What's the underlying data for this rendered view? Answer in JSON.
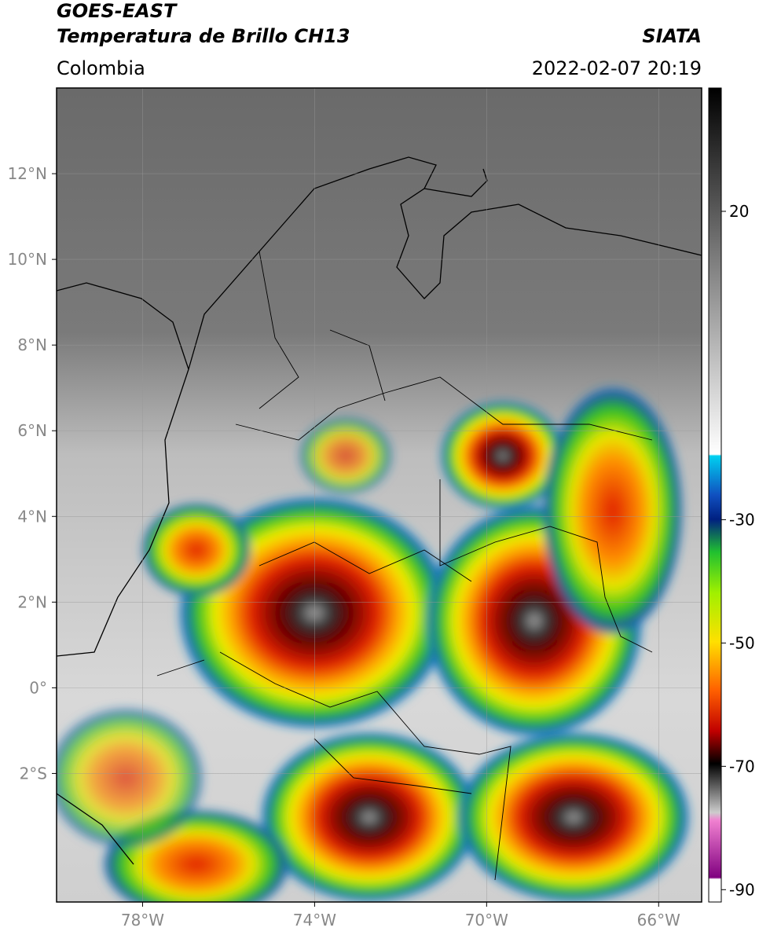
{
  "header": {
    "title": "GOES-EAST",
    "subtitle": "Temperatura de Brillo CH13",
    "source": "SIATA",
    "region": "Colombia",
    "datetime": "2022-02-07 20:19"
  },
  "map": {
    "xlim": [
      -80,
      -65
    ],
    "ylim": [
      -5,
      14
    ],
    "xticks": [
      {
        "value": -78,
        "label": "78°W"
      },
      {
        "value": -74,
        "label": "74°W"
      },
      {
        "value": -70,
        "label": "70°W"
      },
      {
        "value": -66,
        "label": "66°W"
      }
    ],
    "yticks": [
      {
        "value": 12,
        "label": "12°N"
      },
      {
        "value": 10,
        "label": "10°N"
      },
      {
        "value": 8,
        "label": "8°N"
      },
      {
        "value": 6,
        "label": "6°N"
      },
      {
        "value": 4,
        "label": "4°N"
      },
      {
        "value": 2,
        "label": "2°N"
      },
      {
        "value": 0,
        "label": "0°"
      },
      {
        "value": -2,
        "label": "2°S"
      }
    ],
    "grid": true
  },
  "colorbar": {
    "clim": [
      -92,
      40
    ],
    "ticks": [
      20,
      -30,
      -50,
      -70,
      -90
    ]
  }
}
